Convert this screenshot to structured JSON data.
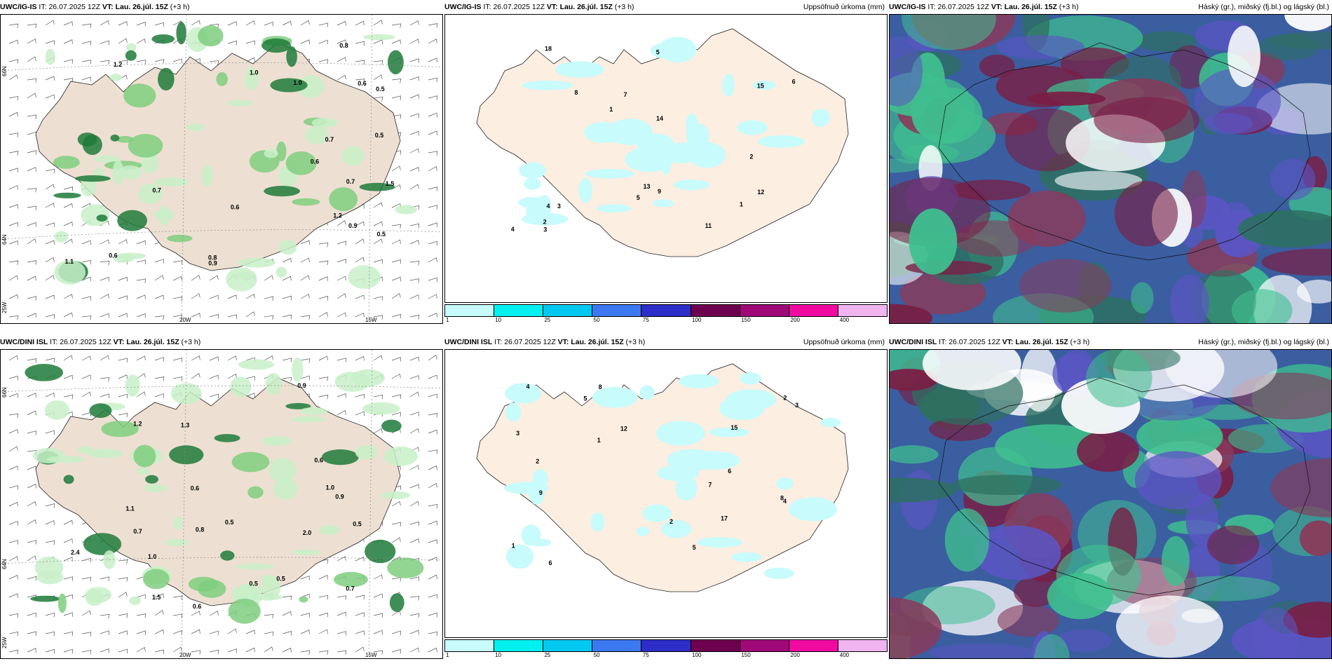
{
  "rows": [
    {
      "model": "UWC/IG-IS",
      "it_label": "IT:",
      "it_value": "26.07.2025 12Z",
      "vt_label": "VT:",
      "vt_value": "Lau. 26.júl. 15Z",
      "lead": "(+3 h)",
      "left_labels": [
        "0.5",
        "0.7",
        "0.6",
        "0.9",
        "1.2",
        "1.0",
        "0.8",
        "0.5",
        "0.7",
        "1.1",
        "0.6",
        "1.0",
        "0.6",
        "0.8",
        "1.2",
        "0.9",
        "0.7",
        "0.5",
        "1.5",
        "0.6"
      ],
      "mid_labels": [
        "3",
        "4",
        "2",
        "1",
        "5",
        "6",
        "7",
        "9",
        "12",
        "11",
        "14",
        "18",
        "13",
        "15",
        "8",
        "3",
        "2",
        "5",
        "4",
        "1"
      ],
      "lat_top": "66N",
      "lat_bottom": "64N",
      "lon_west": "25W",
      "lon_mid": "20W",
      "lon_east": "15W"
    },
    {
      "model": "UWC/DINI ISL",
      "it_label": "IT:",
      "it_value": "26.07.2025 12Z",
      "vt_label": "VT:",
      "vt_value": "Lau. 26.júl. 15Z",
      "lead": "(+3 h)",
      "left_labels": [
        "0.7",
        "0.5",
        "1.0",
        "1.1",
        "0.6",
        "1.2",
        "0.8",
        "0.5",
        "1.5",
        "0.9",
        "2.0",
        "0.6",
        "1.0",
        "0.7",
        "2.4",
        "0.5",
        "1.3",
        "0.6",
        "0.9",
        "0.5"
      ],
      "mid_labels": [
        "2",
        "3",
        "1",
        "4",
        "5",
        "8",
        "6",
        "12",
        "15",
        "7",
        "17",
        "2",
        "3",
        "4",
        "6",
        "8",
        "1",
        "2",
        "9",
        "5"
      ],
      "lat_top": "66N",
      "lat_bottom": "64N",
      "lon_west": "25W",
      "lon_mid": "20W",
      "lon_east": "15W"
    }
  ],
  "precip_title": "Uppsöfnuð úrkoma (mm)",
  "cloud_title": "Háský (gr.), miðský (fj.bl.) og lágský (bl.)",
  "colorbar": {
    "ticks": [
      "1",
      "10",
      "25",
      "50",
      "75",
      "100",
      "150",
      "200",
      "400"
    ],
    "colors": [
      "#c8fbfb",
      "#00f0f0",
      "#00c8f0",
      "#3c78f0",
      "#2d2dc8",
      "#6e0050",
      "#a00a78",
      "#f00aa0",
      "#f0b4f0"
    ]
  },
  "colors": {
    "land": "#ede0d2",
    "land_mid": "#fdeee2",
    "precip_light": "#c8f0c8",
    "precip_med": "#7fce7f",
    "precip_dark": "#1e7a3a",
    "cloud_high": "#7a1e44",
    "cloud_mid": "#5b55c4",
    "cloud_low": "#2d7060"
  }
}
